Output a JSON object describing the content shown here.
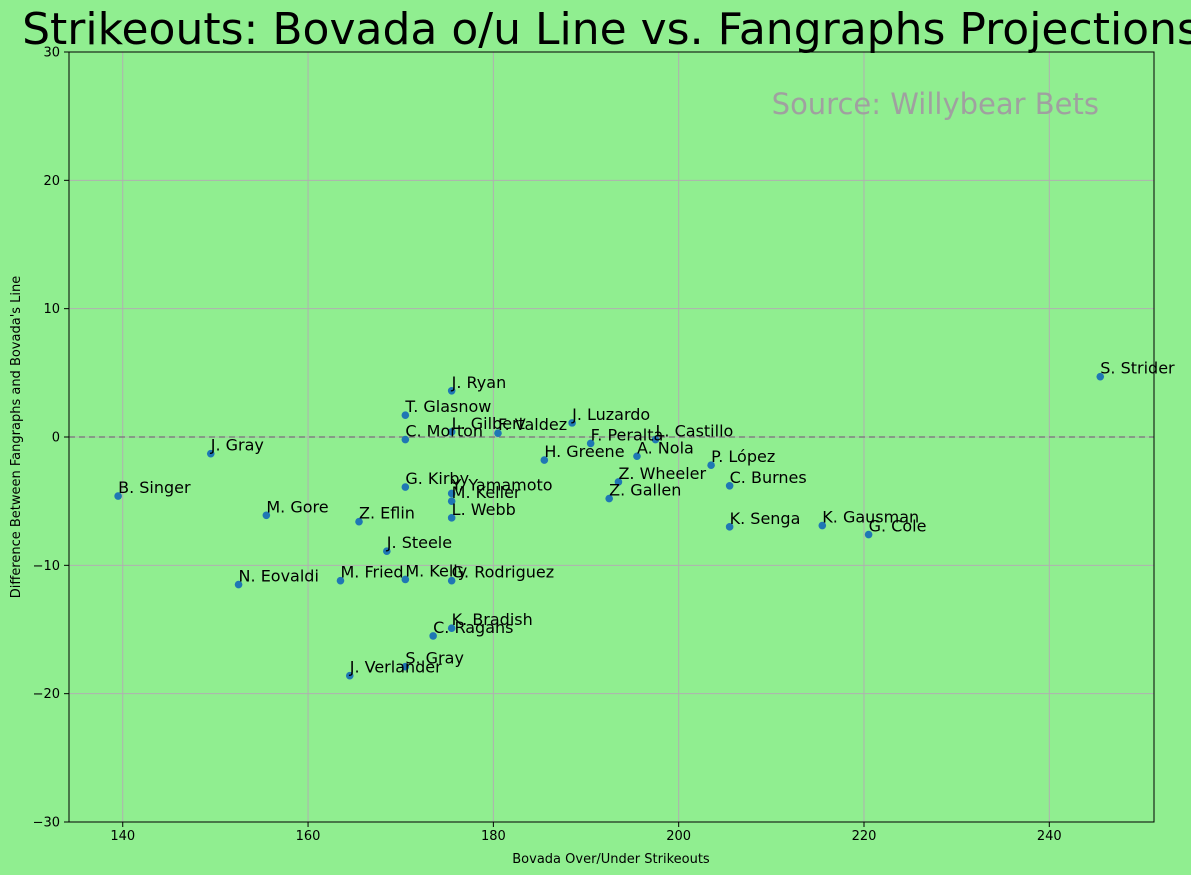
{
  "chart_data": {
    "type": "scatter",
    "title": "Strikeouts: Bovada o/u Line vs. Fangraphs Projections",
    "xlabel": "Bovada Over/Under Strikeouts",
    "ylabel": "Difference Between Fangraphs and Bovada's Line",
    "annotation": "Source: Willybear Bets",
    "xlim": [
      134.2,
      251.3
    ],
    "ylim": [
      -30,
      30
    ],
    "xticks": [
      140,
      160,
      180,
      200,
      220,
      240
    ],
    "yticks": [
      -30,
      -20,
      -10,
      0,
      10,
      20,
      30
    ],
    "xtick_labels": [
      "140",
      "160",
      "180",
      "200",
      "220",
      "240"
    ],
    "ytick_labels": [
      "−30",
      "−20",
      "−10",
      "0",
      "10",
      "20",
      "30"
    ],
    "grid": true,
    "reference_line": {
      "y": 0,
      "style": "dashed"
    },
    "point_color": "#1f77b4",
    "points": [
      {
        "label": "S. Strider",
        "x": 245.5,
        "y": 4.7
      },
      {
        "label": "J. Ryan",
        "x": 175.5,
        "y": 3.6
      },
      {
        "label": "T. Glasnow",
        "x": 170.5,
        "y": 1.7
      },
      {
        "label": "J. Luzardo",
        "x": 188.5,
        "y": 1.1
      },
      {
        "label": "L. Gilbert",
        "x": 175.5,
        "y": 0.4
      },
      {
        "label": "F. Valdez",
        "x": 180.5,
        "y": 0.3
      },
      {
        "label": "L. Castillo",
        "x": 197.5,
        "y": -0.2
      },
      {
        "label": "C. Morton",
        "x": 170.5,
        "y": -0.2
      },
      {
        "label": "F. Peralta",
        "x": 190.5,
        "y": -0.5
      },
      {
        "label": "J. Gray",
        "x": 149.5,
        "y": -1.3
      },
      {
        "label": "A. Nola",
        "x": 195.5,
        "y": -1.5
      },
      {
        "label": "H. Greene",
        "x": 185.5,
        "y": -1.8
      },
      {
        "label": "P. López",
        "x": 203.5,
        "y": -2.2
      },
      {
        "label": "Z. Wheeler",
        "x": 193.5,
        "y": -3.5
      },
      {
        "label": "C. Burnes",
        "x": 205.5,
        "y": -3.8
      },
      {
        "label": "G. Kirby",
        "x": 170.5,
        "y": -3.9
      },
      {
        "label": "Y. Yamamoto",
        "x": 175.5,
        "y": -4.4
      },
      {
        "label": "B. Singer",
        "x": 139.5,
        "y": -4.6
      },
      {
        "label": "Z. Gallen",
        "x": 192.5,
        "y": -4.8
      },
      {
        "label": "M. Keller",
        "x": 175.5,
        "y": -5.0
      },
      {
        "label": "M. Gore",
        "x": 155.5,
        "y": -6.1
      },
      {
        "label": "L. Webb",
        "x": 175.5,
        "y": -6.3
      },
      {
        "label": "Z. Eflin",
        "x": 165.5,
        "y": -6.6
      },
      {
        "label": "K. Gausman",
        "x": 215.5,
        "y": -6.9
      },
      {
        "label": "K. Senga",
        "x": 205.5,
        "y": -7.0
      },
      {
        "label": "G. Cole",
        "x": 220.5,
        "y": -7.6
      },
      {
        "label": "J. Steele",
        "x": 168.5,
        "y": -8.9
      },
      {
        "label": "M. Fried",
        "x": 163.5,
        "y": -11.2
      },
      {
        "label": "M. Kelly",
        "x": 170.5,
        "y": -11.1
      },
      {
        "label": "G. Rodriguez",
        "x": 175.5,
        "y": -11.2
      },
      {
        "label": "N. Eovaldi",
        "x": 152.5,
        "y": -11.5
      },
      {
        "label": "K. Bradish",
        "x": 175.5,
        "y": -14.9
      },
      {
        "label": "C. Ragans",
        "x": 173.5,
        "y": -15.5
      },
      {
        "label": "S. Gray",
        "x": 170.5,
        "y": -17.9
      },
      {
        "label": "J. Verlander",
        "x": 164.5,
        "y": -18.6
      }
    ]
  }
}
